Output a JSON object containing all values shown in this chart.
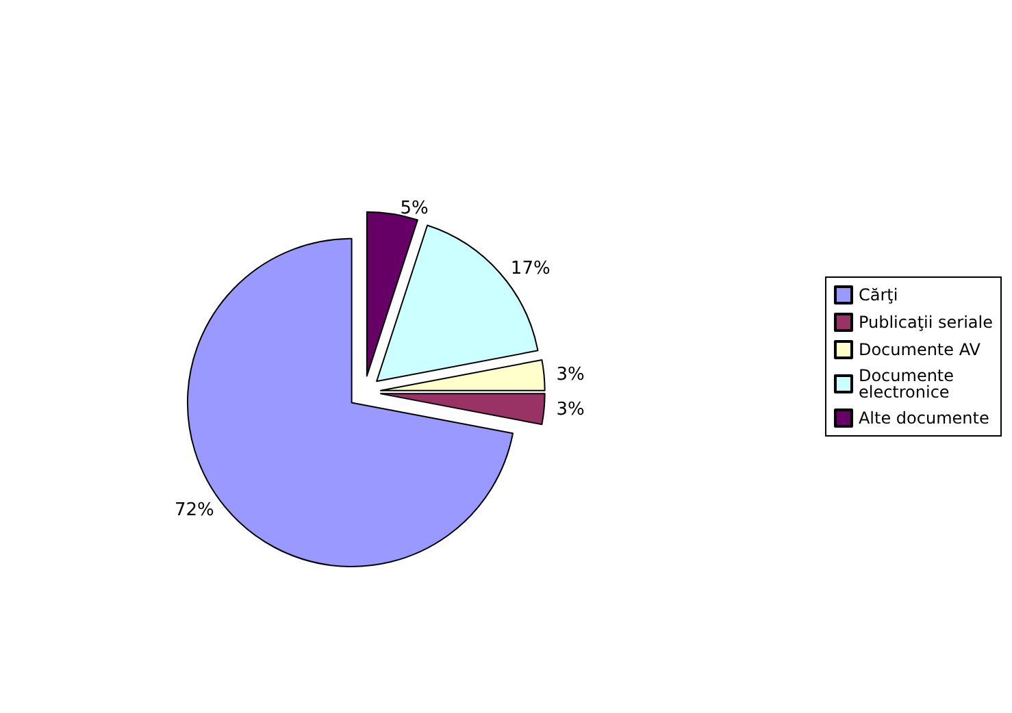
{
  "chart_data": {
    "type": "pie",
    "categories": [
      "Cărţi",
      "Publicaţii seriale",
      "Documente AV",
      "Documente electronice",
      "Alte documente"
    ],
    "values": [
      72,
      3,
      3,
      17,
      5
    ],
    "value_labels": [
      "72%",
      "3%",
      "3%",
      "17%",
      "5%"
    ],
    "colors": [
      "#9999ff",
      "#993366",
      "#ffffcc",
      "#ccffff",
      "#660066"
    ],
    "legend": "right"
  }
}
